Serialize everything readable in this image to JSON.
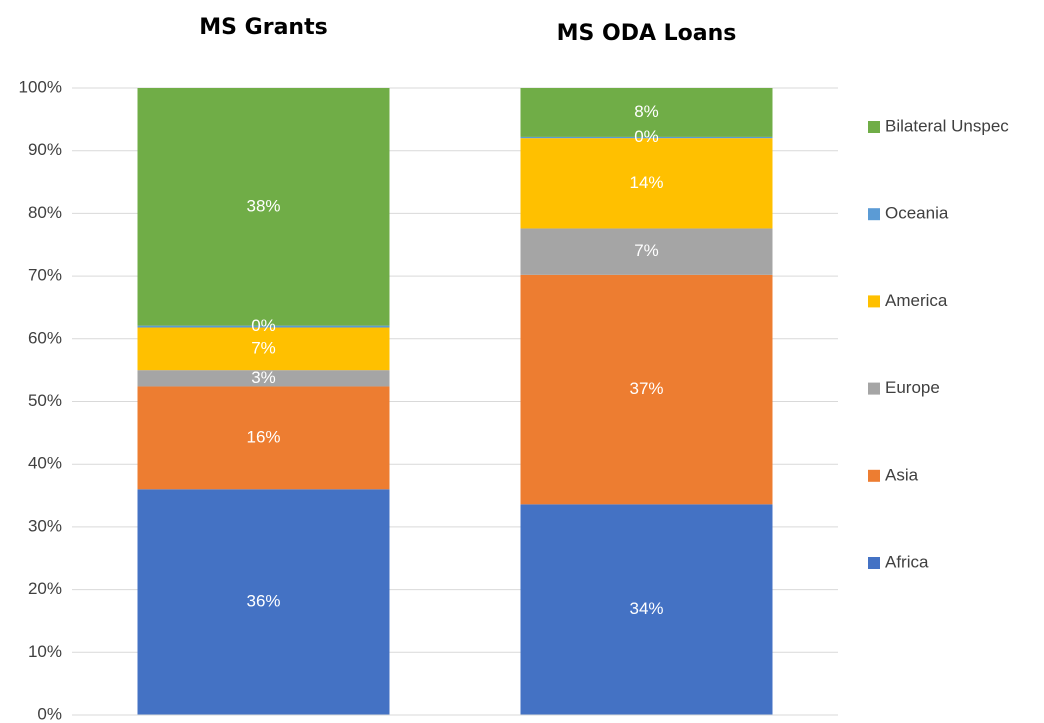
{
  "chart_data": {
    "type": "stacked_bar",
    "categories": [
      "MS Grants",
      "MS ODA Loans"
    ],
    "series": [
      {
        "name": "Africa",
        "color": "#4472c4",
        "values": [
          36,
          33.6
        ],
        "value_labels": [
          "36%",
          "34%"
        ]
      },
      {
        "name": "Asia",
        "color": "#ed7d31",
        "values": [
          16.4,
          36.6
        ],
        "value_labels": [
          "16%",
          "37%"
        ]
      },
      {
        "name": "Europe",
        "color": "#a5a5a5",
        "values": [
          2.6,
          7.4
        ],
        "value_labels": [
          "3%",
          "7%"
        ]
      },
      {
        "name": "America",
        "color": "#ffc000",
        "values": [
          6.8,
          14.4
        ],
        "value_labels": [
          "7%",
          "14%"
        ]
      },
      {
        "name": "Oceania",
        "color": "#5b9bd5",
        "values": [
          0.3,
          0.2
        ],
        "value_labels": [
          "0%",
          "0%"
        ]
      },
      {
        "name": "Bilateral Unspec",
        "color": "#70ad47",
        "values": [
          37.9,
          7.8
        ],
        "value_labels": [
          "38%",
          "8%"
        ]
      }
    ],
    "ylim": [
      0,
      100
    ],
    "yticks": [
      {
        "value": 0,
        "label": "0%"
      },
      {
        "value": 10,
        "label": "10%"
      },
      {
        "value": 20,
        "label": "20%"
      },
      {
        "value": 30,
        "label": "30%"
      },
      {
        "value": 40,
        "label": "40%"
      },
      {
        "value": 50,
        "label": "50%"
      },
      {
        "value": 60,
        "label": "60%"
      },
      {
        "value": 70,
        "label": "70%"
      },
      {
        "value": 80,
        "label": "80%"
      },
      {
        "value": 90,
        "label": "90%"
      },
      {
        "value": 100,
        "label": "100%"
      }
    ],
    "grid": true,
    "legend": "right"
  }
}
